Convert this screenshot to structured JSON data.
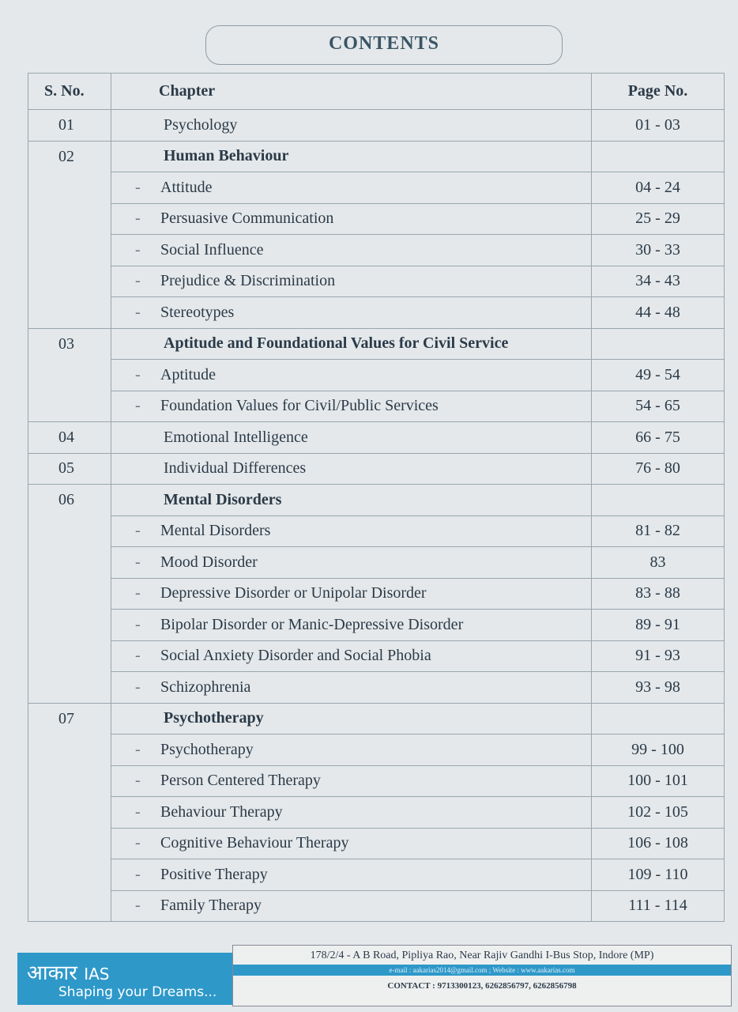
{
  "title": "CONTENTS",
  "headers": {
    "sno": "S. No.",
    "chapter": "Chapter",
    "page": "Page No."
  },
  "rows": [
    {
      "sno": "01",
      "chapter": "Psychology",
      "pages": "01 - 03"
    },
    {
      "sno": "02",
      "chapter": "Human Behaviour",
      "pages": "",
      "bold": true
    },
    {
      "sub": true,
      "chapter": "Attitude",
      "pages": "04 - 24"
    },
    {
      "sub": true,
      "chapter": "Persuasive Communication",
      "pages": "25 - 29"
    },
    {
      "sub": true,
      "chapter": "Social Influence",
      "pages": "30 - 33"
    },
    {
      "sub": true,
      "chapter": "Prejudice & Discrimination",
      "pages": "34 - 43"
    },
    {
      "sub": true,
      "chapter": "Stereotypes",
      "pages": "44 - 48"
    },
    {
      "sno": "03",
      "chapter": "Aptitude and Foundational Values for Civil Service",
      "pages": "",
      "bold": true
    },
    {
      "sub": true,
      "chapter": "Aptitude",
      "pages": "49 - 54"
    },
    {
      "sub": true,
      "chapter": "Foundation Values for Civil/Public Services",
      "pages": "54 - 65"
    },
    {
      "sno": "04",
      "chapter": "Emotional Intelligence",
      "pages": "66 - 75"
    },
    {
      "sno": "05",
      "chapter": "Individual Differences",
      "pages": "76 - 80"
    },
    {
      "sno": "06",
      "chapter": "Mental Disorders",
      "pages": "",
      "bold": true
    },
    {
      "sub": true,
      "chapter": "Mental Disorders",
      "pages": "81 - 82"
    },
    {
      "sub": true,
      "chapter": "Mood Disorder",
      "pages": "83"
    },
    {
      "sub": true,
      "chapter": "Depressive Disorder or Unipolar Disorder",
      "pages": "83 - 88"
    },
    {
      "sub": true,
      "chapter": "Bipolar Disorder or Manic-Depressive Disorder",
      "pages": "89 - 91"
    },
    {
      "sub": true,
      "chapter": "Social Anxiety Disorder and Social Phobia",
      "pages": "91 - 93"
    },
    {
      "sub": true,
      "chapter": "Schizophrenia",
      "pages": "93 - 98"
    },
    {
      "sno": "07",
      "chapter": "Psychotherapy",
      "pages": "",
      "bold": true
    },
    {
      "sub": true,
      "chapter": "Psychotherapy",
      "pages": "99 - 100"
    },
    {
      "sub": true,
      "chapter": "Person Centered Therapy",
      "pages": "100 - 101"
    },
    {
      "sub": true,
      "chapter": "Behaviour Therapy",
      "pages": "102 - 105"
    },
    {
      "sub": true,
      "chapter": "Cognitive Behaviour Therapy",
      "pages": "106 - 108"
    },
    {
      "sub": true,
      "chapter": "Positive Therapy",
      "pages": "109 - 110"
    },
    {
      "sub": true,
      "chapter": "Family Therapy",
      "pages": "111 - 114"
    }
  ],
  "dash": "-",
  "footer": {
    "logo_hindi": "आकार",
    "logo_ias": "IAS",
    "tagline": "Shaping your Dreams...",
    "address": "178/2/4 - A B Road, Pipliya Rao, Near Rajiv Gandhi I-Bus Stop, Indore (MP)",
    "email_web": "e-mail : aakarias2014@gmail.com ; Website : www.aakarias.com",
    "contact": "CONTACT : 9713300123, 6262856797, 6262856798"
  },
  "colors": {
    "brand": "#2e98c9",
    "text": "#2b3a48",
    "paper": "#e4e8ea"
  }
}
